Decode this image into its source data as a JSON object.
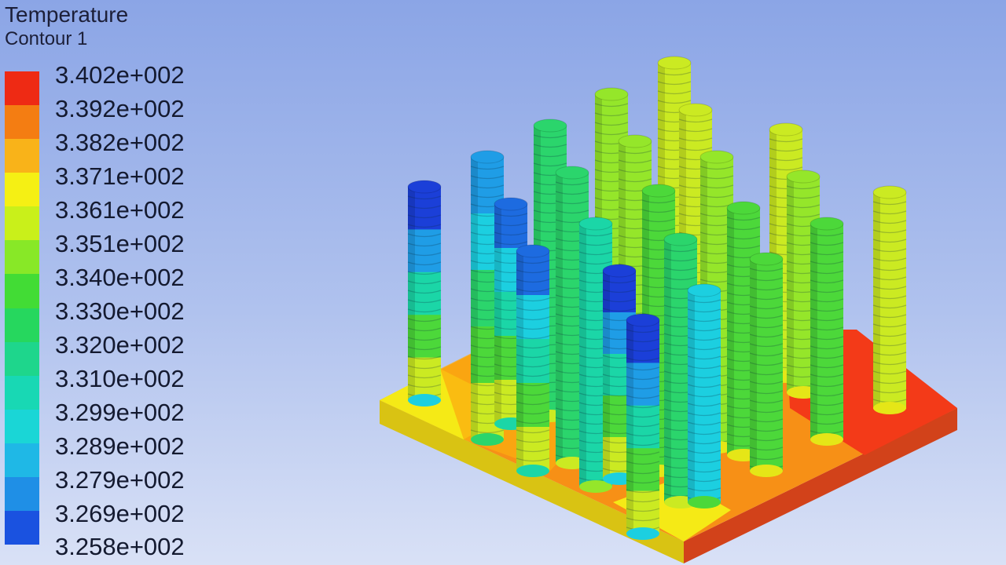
{
  "legend": {
    "title": "Temperature",
    "subtitle": "Contour 1",
    "ticks": [
      "3.402e+002",
      "3.392e+002",
      "3.382e+002",
      "3.371e+002",
      "3.361e+002",
      "3.351e+002",
      "3.340e+002",
      "3.330e+002",
      "3.320e+002",
      "3.310e+002",
      "3.299e+002",
      "3.289e+002",
      "3.279e+002",
      "3.269e+002",
      "3.258e+002"
    ],
    "band_colors": [
      "#ee2a14",
      "#f47d12",
      "#f9b319",
      "#f5f014",
      "#c9f01a",
      "#88e827",
      "#42dc35",
      "#26d75e",
      "#1ed68c",
      "#18d8b4",
      "#1ad6d6",
      "#1fb8e6",
      "#1f8fe6",
      "#1a52e0"
    ]
  },
  "scene": {
    "base_colors": {
      "red": "#f33a18",
      "orange": "#f79016",
      "amber": "#fbac10",
      "yellow": "#f5ea16"
    },
    "pin_colors": [
      "#1b3fd8",
      "#1d6be0",
      "#1f9de6",
      "#1ccfe0",
      "#1bd6a7",
      "#2bd56c",
      "#4cd83a",
      "#95e62a",
      "#cbea22",
      "#e5e617"
    ]
  }
}
